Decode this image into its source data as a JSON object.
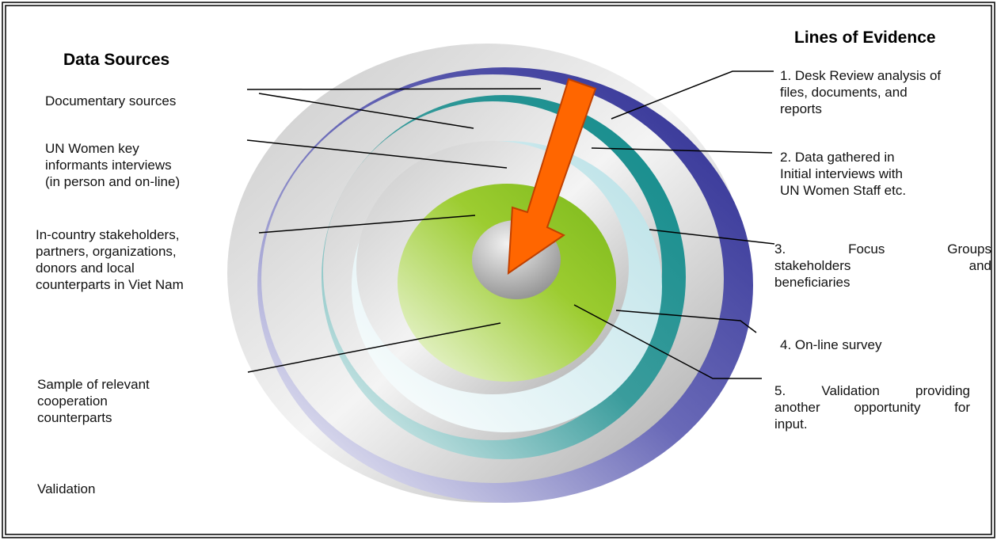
{
  "left": {
    "title": "Data Sources",
    "items": [
      {
        "lines": [
          "Documentary sources"
        ]
      },
      {
        "lines": [
          "UN Women key",
          "informants interviews",
          "(in person and on-line)"
        ]
      },
      {
        "lines": [
          "In-country stakeholders,",
          "partners, organizations,",
          "donors and local",
          "counterparts in Viet Nam"
        ]
      },
      {
        "lines": [
          "Sample of relevant",
          "cooperation",
          "counterparts"
        ]
      },
      {
        "lines": [
          "Validation"
        ]
      }
    ]
  },
  "right": {
    "title": "Lines of Evidence",
    "items": [
      {
        "lines": [
          "1. Desk Review analysis of",
          "files, documents, and",
          "reports"
        ]
      },
      {
        "lines": [
          "2.  Data gathered in",
          "Initial interviews with",
          "UN Women Staff etc."
        ]
      },
      {
        "lines": [
          "3.      Focus      Groups",
          "stakeholders      and",
          "beneficiaries"
        ]
      },
      {
        "lines": [
          "4. On-line survey"
        ]
      },
      {
        "lines": [
          "5.  Validation  providing",
          "another opportunity for",
          "input."
        ]
      }
    ]
  }
}
